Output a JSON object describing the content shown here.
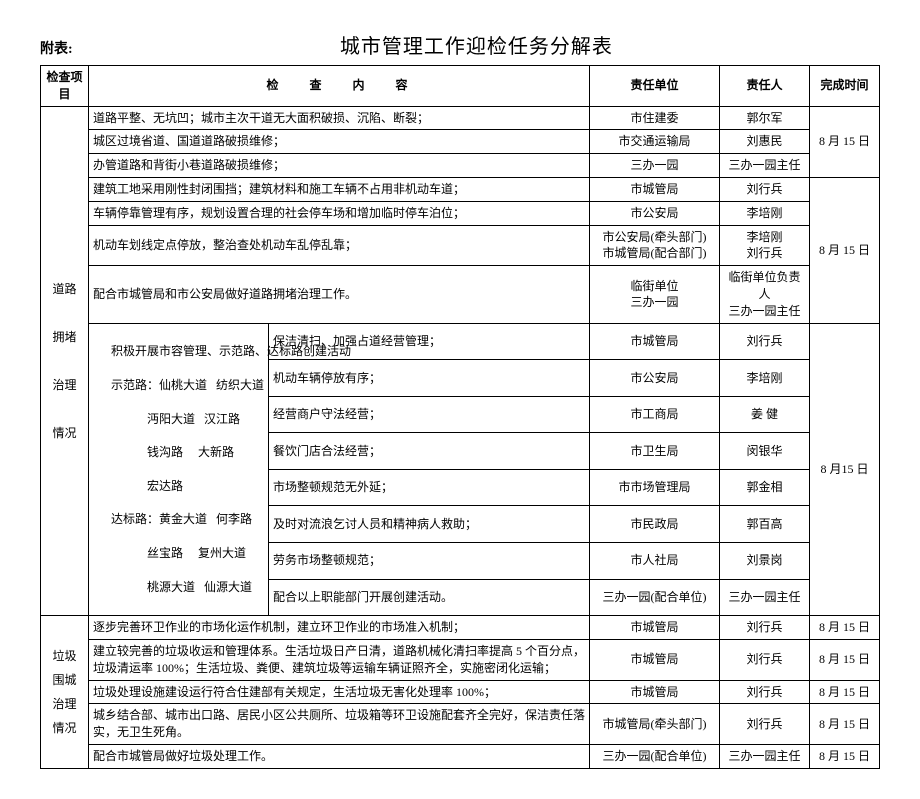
{
  "annex_label": "附表:",
  "title": "城市管理工作迎检任务分解表",
  "headers": {
    "category": "检查项目",
    "content": "检 查 内 容",
    "unit": "责任单位",
    "person": "责任人",
    "time": "完成时间"
  },
  "section1": {
    "category": "道路\n\n拥堵\n\n治理\n\n情况",
    "rows": [
      {
        "content": "道路平整、无坑凹；城市主次干道无大面积破损、沉陷、断裂；",
        "unit": "市住建委",
        "person": "郭尔军"
      },
      {
        "content": "城区过境省道、国道道路破损维修；",
        "unit": "市交通运输局",
        "person": "刘惠民"
      },
      {
        "content": "办管道路和背街小巷道路破损维修；",
        "unit": "三办一园",
        "person": "三办一园主任"
      },
      {
        "content": "建筑工地采用刚性封闭围挡；建筑材料和施工车辆不占用非机动车道；",
        "unit": "市城管局",
        "person": "刘行兵"
      },
      {
        "content": "车辆停靠管理有序，规划设置合理的社会停车场和增加临时停车泊位；",
        "unit": "市公安局",
        "person": "李培刚"
      },
      {
        "content": "机动车划线定点停放，整治查处机动车乱停乱靠；",
        "unit": "市公安局(牵头部门)\n市城管局(配合部门)",
        "person": "李培刚\n刘行兵"
      },
      {
        "content": "配合市城管局和市公安局做好道路拥堵治理工作。",
        "unit": "临街单位\n三办一园",
        "person": "临街单位负责人\n三办一园主任"
      }
    ],
    "time_group1": "8 月 15 日",
    "time_group2": "8 月 15 日",
    "subgroup": {
      "left_intro_l1": "积极开展市容管理、示范路、达标路创建活动",
      "left_intro_l2": "示范路：仙桃大道   纺织大道",
      "left_intro_l3": "            沔阳大道   汉江路",
      "left_intro_l4": "            钱沟路     大新路",
      "left_intro_l5": "            宏达路",
      "left_intro_l6": "达标路：黄金大道   何李路",
      "left_intro_l7": "            丝宝路     复州大道",
      "left_intro_l8": "            桃源大道   仙源大道",
      "rows": [
        {
          "content": "保洁清扫、加强占道经营管理；",
          "unit": "市城管局",
          "person": "刘行兵"
        },
        {
          "content": "机动车辆停放有序；",
          "unit": "市公安局",
          "person": "李培刚"
        },
        {
          "content": "经营商户守法经营；",
          "unit": "市工商局",
          "person": "姜  健"
        },
        {
          "content": "餐饮门店合法经营；",
          "unit": "市卫生局",
          "person": "闵银华"
        },
        {
          "content": "市场整顿规范无外延；",
          "unit": "市市场管理局",
          "person": "郭金相"
        },
        {
          "content": "及时对流浪乞讨人员和精神病人救助；",
          "unit": "市民政局",
          "person": "郭百高"
        },
        {
          "content": "劳务市场整顿规范；",
          "unit": "市人社局",
          "person": "刘景岗"
        },
        {
          "content": "配合以上职能部门开展创建活动。",
          "unit": "三办一园(配合单位)",
          "person": "三办一园主任"
        }
      ],
      "time": "8 月15 日"
    }
  },
  "section2": {
    "category": "垃圾\n围城\n治理\n情况",
    "rows": [
      {
        "content": "逐步完善环卫作业的市场化运作机制，建立环卫作业的市场准入机制；",
        "unit": "市城管局",
        "person": "刘行兵",
        "time": "8 月 15 日"
      },
      {
        "content": "建立较完善的垃圾收运和管理体系。生活垃圾日产日清，道路机械化清扫率提高 5 个百分点，垃圾清运率 100%；生活垃圾、粪便、建筑垃圾等运输车辆证照齐全，实施密闭化运输；",
        "unit": "市城管局",
        "person": "刘行兵",
        "time": "8 月 15 日"
      },
      {
        "content": "垃圾处理设施建设运行符合住建部有关规定，生活垃圾无害化处理率 100%；",
        "unit": "市城管局",
        "person": "刘行兵",
        "time": "8 月 15 日"
      },
      {
        "content": "城乡结合部、城市出口路、居民小区公共厕所、垃圾箱等环卫设施配套齐全完好，保洁责任落实，无卫生死角。",
        "unit": "市城管局(牵头部门)",
        "person": "刘行兵",
        "time": "8 月 15 日"
      },
      {
        "content": "配合市城管局做好垃圾处理工作。",
        "unit": "三办一园(配合单位)",
        "person": "三办一园主任",
        "time": "8 月 15 日"
      }
    ]
  }
}
